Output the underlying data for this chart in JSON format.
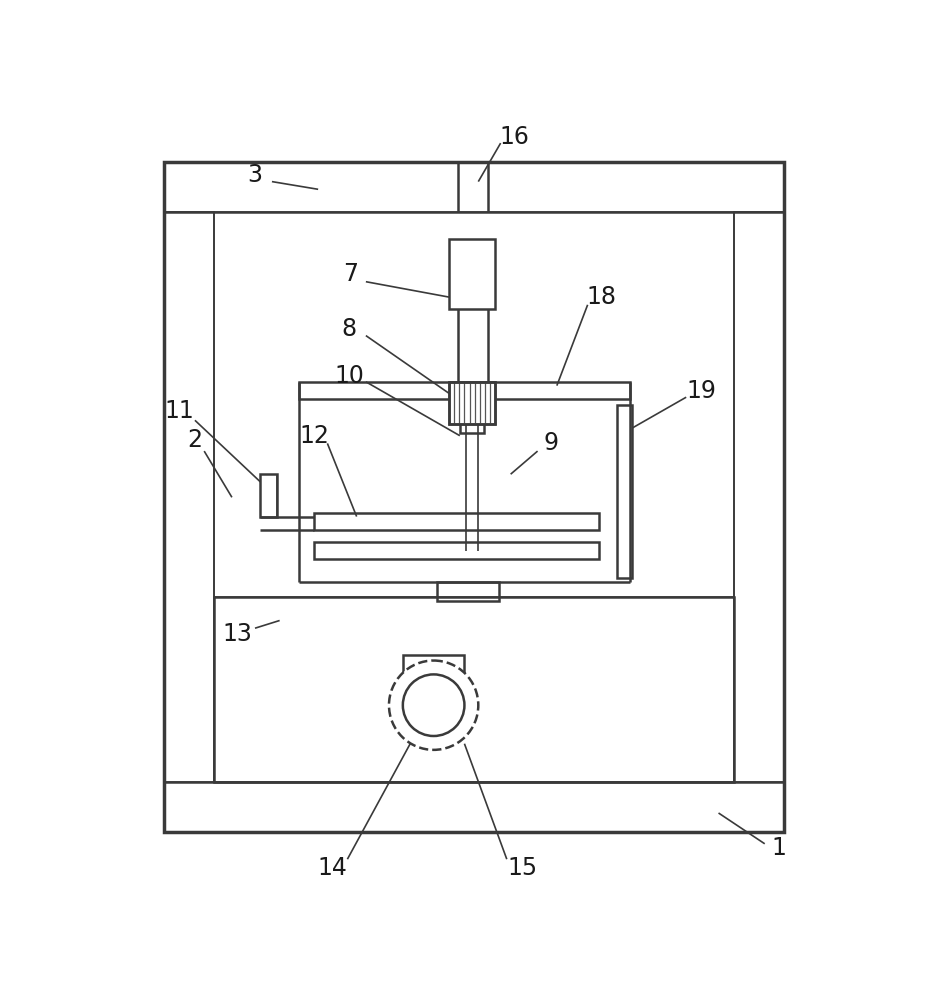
{
  "bg_color": "#ffffff",
  "lc": "#3a3a3a",
  "lw_main": 1.8,
  "lw_thin": 1.2,
  "lw_thick": 2.5,
  "fig_w": 9.25,
  "fig_h": 10.0
}
